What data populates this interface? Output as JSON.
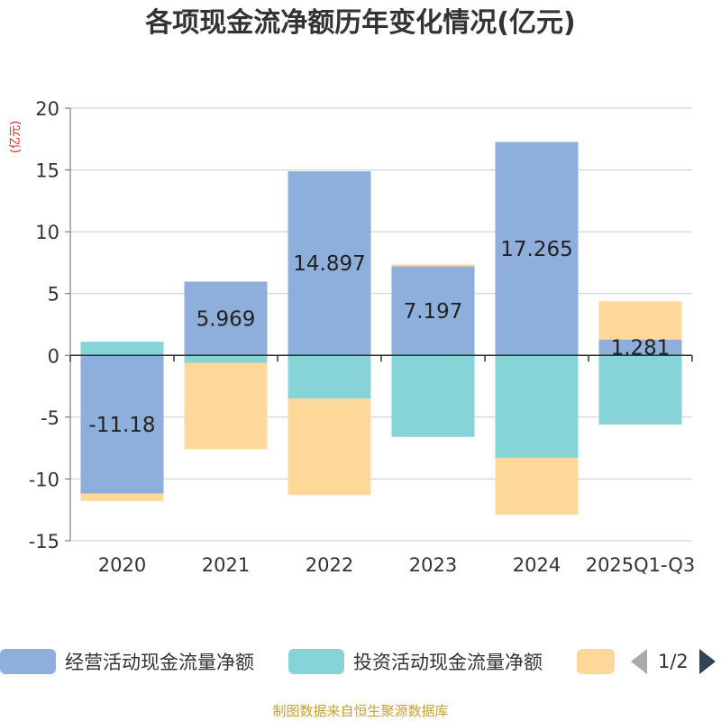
{
  "chart_data": {
    "type": "bar",
    "stacked": true,
    "title": "各项现金流净额历年变化情况(亿元)",
    "ylabel": "(亿元)",
    "xlabel": "",
    "ylim": [
      -15,
      20
    ],
    "yticks": [
      -15,
      -10,
      -5,
      0,
      5,
      10,
      15,
      20
    ],
    "categories": [
      "2020",
      "2021",
      "2022",
      "2023",
      "2024",
      "2025Q1-Q3"
    ],
    "series": [
      {
        "name": "经营活动现金流量净额",
        "color": "#8eaedb",
        "values": [
          -11.18,
          5.969,
          14.897,
          7.197,
          17.265,
          1.281
        ],
        "labels": [
          "-11.18",
          "5.969",
          "14.897",
          "7.197",
          "17.265",
          "1.281"
        ]
      },
      {
        "name": "投资活动现金流量净额",
        "color": "#86d4d7",
        "values": [
          1.1,
          -0.6,
          -3.5,
          -6.6,
          -8.3,
          -5.6
        ]
      },
      {
        "name": "",
        "color": "#fdd899",
        "values": [
          -0.6,
          -7.0,
          -7.8,
          0.15,
          -4.6,
          3.1
        ]
      }
    ],
    "legend": {
      "position": "bottom",
      "page": "1/2"
    },
    "source": "制图数据来自恒生聚源数据库"
  }
}
